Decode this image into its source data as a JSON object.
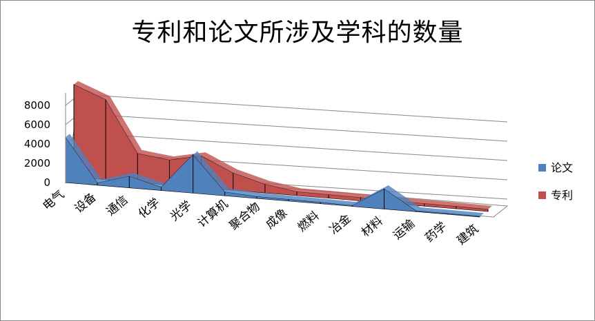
{
  "chart_data": {
    "type": "area",
    "title": "专利和论文所涉及学科的数量",
    "categories": [
      "电气",
      "设备",
      "通信",
      "化学",
      "光学",
      "计算机",
      "聚合物",
      "成像",
      "燃料",
      "冶金",
      "材料",
      "运输",
      "药学",
      "建筑"
    ],
    "series": [
      {
        "name": "论文",
        "values": [
          4700,
          250,
          1200,
          350,
          4000,
          400,
          200,
          180,
          150,
          100,
          2100,
          100,
          80,
          50
        ],
        "color": "#4f81bd"
      },
      {
        "name": "专利",
        "values": [
          9600,
          8300,
          3000,
          2600,
          3300,
          1800,
          900,
          400,
          380,
          350,
          300,
          280,
          260,
          220
        ],
        "color": "#c0504d"
      }
    ],
    "yticks": [
      "0",
      "2000",
      "4000",
      "6000",
      "8000"
    ],
    "ylim": [
      0,
      10000
    ],
    "grid": true,
    "legend_position": "right"
  }
}
